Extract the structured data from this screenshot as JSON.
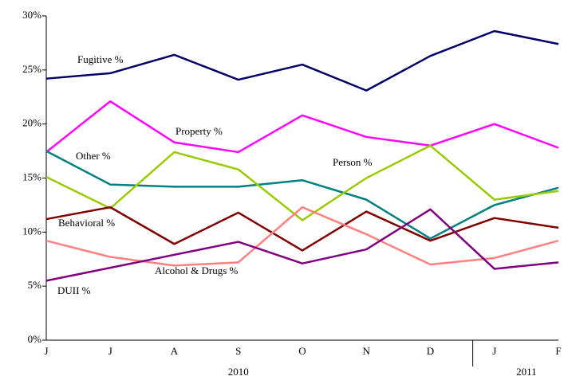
{
  "chart_data": {
    "type": "line",
    "categories": [
      "J",
      "J",
      "A",
      "S",
      "O",
      "N",
      "D",
      "J",
      "F"
    ],
    "category_groups": [
      "2010",
      "2011"
    ],
    "ylim": [
      0,
      30
    ],
    "yticks": [
      {
        "value": 0,
        "label": "0%"
      },
      {
        "value": 5,
        "label": "5%"
      },
      {
        "value": 10,
        "label": "10%"
      },
      {
        "value": 15,
        "label": "15%"
      },
      {
        "value": 20,
        "label": "20%"
      },
      {
        "value": 25,
        "label": "25%"
      },
      {
        "value": 30,
        "label": "30%"
      }
    ],
    "grid": false,
    "series": [
      {
        "name": "Fugitive %",
        "color": "#000066",
        "values": [
          24.2,
          24.7,
          26.4,
          24.1,
          25.5,
          23.1,
          26.3,
          28.6,
          27.4
        ]
      },
      {
        "name": "Property %",
        "color": "#ff00ff",
        "values": [
          17.4,
          22.1,
          18.3,
          17.4,
          20.8,
          18.8,
          18.0,
          20.0,
          17.8
        ]
      },
      {
        "name": "Other %",
        "color": "#008080",
        "values": [
          17.5,
          14.4,
          14.2,
          14.2,
          14.8,
          13.0,
          9.4,
          12.5,
          14.1
        ]
      },
      {
        "name": "Person %",
        "color": "#99cc00",
        "values": [
          15.1,
          12.2,
          17.4,
          15.8,
          11.1,
          15.0,
          18.0,
          13.0,
          13.8
        ]
      },
      {
        "name": "Behavioral %",
        "color": "#800000",
        "values": [
          11.2,
          12.3,
          8.9,
          11.8,
          8.3,
          11.9,
          9.2,
          11.3,
          10.4
        ]
      },
      {
        "name": "Alcohol & Drugs %",
        "color": "#ff8080",
        "values": [
          9.2,
          7.7,
          6.9,
          7.2,
          12.3,
          9.8,
          7.0,
          7.6,
          9.2
        ]
      },
      {
        "name": "DUII %",
        "color": "#800080",
        "values": [
          5.5,
          6.7,
          7.9,
          9.1,
          7.1,
          8.4,
          12.1,
          6.6,
          7.2
        ]
      }
    ]
  }
}
